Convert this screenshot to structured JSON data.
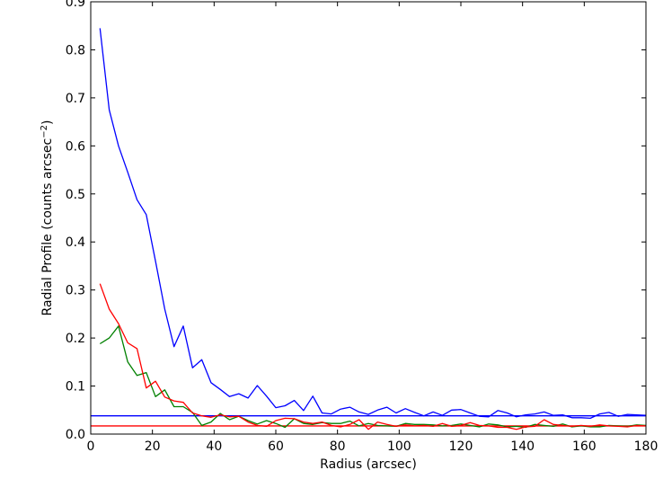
{
  "chart_data": {
    "type": "line",
    "title": "",
    "xlabel": "Radius (arcsec)",
    "ylabel": {
      "main": "Radial Profile (counts arcsec",
      "sup": "−2",
      "close": ")"
    },
    "xlim": [
      0,
      180
    ],
    "ylim": [
      0.0,
      0.9
    ],
    "x_ticks": [
      0,
      20,
      40,
      60,
      80,
      100,
      120,
      140,
      160,
      180
    ],
    "y_ticks": [
      0.0,
      0.1,
      0.2,
      0.3,
      0.4,
      0.5,
      0.6,
      0.7,
      0.8,
      0.9
    ],
    "y_tick_labels": [
      "0.0",
      "0.1",
      "0.2",
      "0.3",
      "0.4",
      "0.5",
      "0.6",
      "0.7",
      "0.8",
      "0.9"
    ],
    "grid": false,
    "legend": "none",
    "x": [
      3,
      6,
      9,
      12,
      15,
      18,
      21,
      24,
      27,
      30,
      33,
      36,
      39,
      42,
      45,
      48,
      51,
      54,
      57,
      60,
      63,
      66,
      69,
      72,
      75,
      78,
      81,
      84,
      87,
      90,
      93,
      96,
      99,
      102,
      105,
      108,
      111,
      114,
      117,
      120,
      123,
      126,
      129,
      132,
      135,
      138,
      141,
      144,
      147,
      150,
      153,
      156,
      159,
      162,
      165,
      168,
      171,
      174,
      177,
      180
    ],
    "series": [
      {
        "color": "#0000ff",
        "values": [
          0.845,
          0.675,
          0.6,
          0.545,
          0.488,
          0.457,
          0.36,
          0.26,
          0.182,
          0.225,
          0.138,
          0.155,
          0.107,
          0.093,
          0.078,
          0.084,
          0.075,
          0.101,
          0.079,
          0.055,
          0.059,
          0.07,
          0.049,
          0.079,
          0.044,
          0.042,
          0.052,
          0.056,
          0.046,
          0.041,
          0.05,
          0.056,
          0.044,
          0.053,
          0.045,
          0.038,
          0.046,
          0.039,
          0.05,
          0.051,
          0.044,
          0.037,
          0.036,
          0.049,
          0.044,
          0.036,
          0.04,
          0.042,
          0.046,
          0.039,
          0.04,
          0.034,
          0.034,
          0.033,
          0.042,
          0.045,
          0.037,
          0.041,
          0.04,
          0.039
        ]
      },
      {
        "color": "#008000",
        "values": [
          0.188,
          0.2,
          0.225,
          0.15,
          0.122,
          0.128,
          0.078,
          0.092,
          0.057,
          0.057,
          0.045,
          0.018,
          0.025,
          0.043,
          0.03,
          0.037,
          0.028,
          0.021,
          0.028,
          0.022,
          0.014,
          0.032,
          0.022,
          0.02,
          0.024,
          0.022,
          0.022,
          0.027,
          0.017,
          0.022,
          0.018,
          0.017,
          0.016,
          0.022,
          0.02,
          0.02,
          0.019,
          0.017,
          0.018,
          0.021,
          0.018,
          0.015,
          0.021,
          0.019,
          0.015,
          0.016,
          0.014,
          0.02,
          0.018,
          0.016,
          0.021,
          0.015,
          0.017,
          0.015,
          0.015,
          0.018,
          0.017,
          0.016,
          0.019,
          0.018
        ]
      },
      {
        "color": "#ff0000",
        "values": [
          0.313,
          0.26,
          0.23,
          0.19,
          0.178,
          0.096,
          0.11,
          0.077,
          0.069,
          0.066,
          0.044,
          0.038,
          0.035,
          0.04,
          0.036,
          0.037,
          0.025,
          0.018,
          0.016,
          0.028,
          0.033,
          0.032,
          0.025,
          0.022,
          0.025,
          0.018,
          0.015,
          0.02,
          0.03,
          0.01,
          0.025,
          0.02,
          0.016,
          0.019,
          0.017,
          0.018,
          0.016,
          0.022,
          0.016,
          0.018,
          0.024,
          0.018,
          0.017,
          0.014,
          0.014,
          0.01,
          0.015,
          0.016,
          0.03,
          0.02,
          0.018,
          0.016,
          0.018,
          0.016,
          0.019,
          0.017,
          0.016,
          0.015,
          0.018,
          0.017
        ]
      }
    ],
    "hlines": [
      {
        "color": "#0000ff",
        "y": 0.038
      },
      {
        "color": "#ff0000",
        "y": 0.017
      }
    ]
  }
}
